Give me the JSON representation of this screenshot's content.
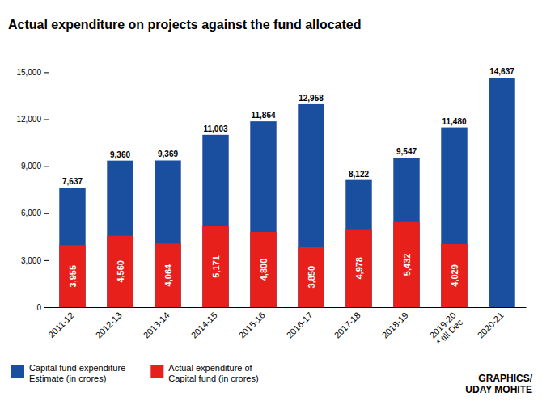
{
  "chart_data": {
    "type": "bar",
    "title": "Actual expenditure on projects against the fund allocated",
    "categories": [
      "2011-12",
      "2012-13",
      "2013-14",
      "2014-15",
      "2015-16",
      "2016-17",
      "2017-18",
      "2018-19",
      "2019-20\n* till Dec",
      "2020-21"
    ],
    "series": [
      {
        "name": "Capital fund expenditure -\nEstimate (in crores)",
        "color": "#1a4fa0",
        "values": [
          7637,
          9360,
          9369,
          11003,
          11864,
          12958,
          8122,
          9547,
          11480,
          14637
        ],
        "value_labels": [
          "7,637",
          "9,360",
          "9,369",
          "11,003",
          "11,864",
          "12,958",
          "8,122",
          "9,547",
          "11,480",
          "14,637"
        ]
      },
      {
        "name": "Actual expenditure of\nCapital fund (in crores)",
        "color": "#e8201c",
        "values": [
          3955,
          4560,
          4064,
          5171,
          4800,
          3850,
          4978,
          5432,
          4029,
          null
        ],
        "value_labels": [
          "3,955",
          "4,560",
          "4,064",
          "5,171",
          "4,800",
          "3,850",
          "4,978",
          "5,432",
          "4,029",
          null
        ]
      }
    ],
    "ylim": [
      0,
      16000
    ],
    "yticks": [
      0,
      {
        "value": 3000,
        "label": "3,000"
      },
      {
        "value": 6000,
        "label": "6,000"
      },
      {
        "value": 9000,
        "label": "9,000"
      },
      {
        "value": 12000,
        "label": "12,000"
      },
      {
        "value": 15000,
        "label": "15,000"
      }
    ],
    "grid": false,
    "legend": "lower left",
    "data_labels": true,
    "annotations": [
      "GRAPHICS/\nUDAY MOHITE"
    ]
  }
}
